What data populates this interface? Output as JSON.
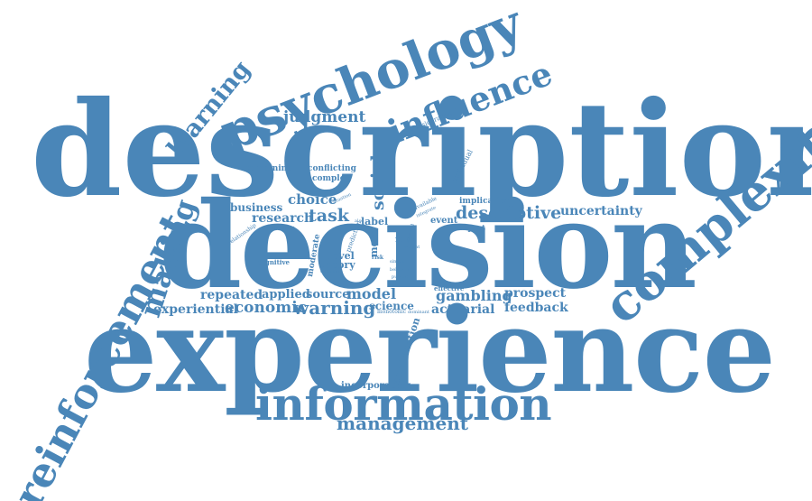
{
  "accent_color": "#4a86b8",
  "background_color": "#ffffff",
  "words": [
    {
      "id": "description",
      "text": "description"
    },
    {
      "id": "decision",
      "text": "decision"
    },
    {
      "id": "experience",
      "text": "experience"
    },
    {
      "id": "information",
      "text": "information"
    },
    {
      "id": "management",
      "text": "management"
    },
    {
      "id": "psychology",
      "text": "psychology"
    },
    {
      "id": "influence",
      "text": "influence"
    },
    {
      "id": "complexity",
      "text": "complexity"
    },
    {
      "id": "reinforcement",
      "text": "reinforcement"
    },
    {
      "id": "learning",
      "text": "learning"
    },
    {
      "id": "making",
      "text": "making"
    },
    {
      "id": "judgment",
      "text": "judgment"
    },
    {
      "id": "consideration",
      "text": "consideration"
    },
    {
      "id": "combining",
      "text": "combining"
    },
    {
      "id": "conflicting",
      "text": "conflicting"
    },
    {
      "id": "complex",
      "text": "complex"
    },
    {
      "id": "social",
      "text": "social"
    },
    {
      "id": "individual",
      "text": "individual"
    },
    {
      "id": "choice",
      "text": "choice"
    },
    {
      "id": "business",
      "text": "business"
    },
    {
      "id": "research",
      "text": "research"
    },
    {
      "id": "task",
      "text": "task"
    },
    {
      "id": "situation",
      "text": "situation"
    },
    {
      "id": "label",
      "text": "label"
    },
    {
      "id": "also",
      "text": "also"
    },
    {
      "id": "available",
      "text": "available"
    },
    {
      "id": "integrate",
      "text": "integrate"
    },
    {
      "id": "implication",
      "text": "implication"
    },
    {
      "id": "descriptive",
      "text": "descriptive"
    },
    {
      "id": "uncertainty",
      "text": "uncertainty"
    },
    {
      "id": "event",
      "text": "event"
    },
    {
      "id": "impact",
      "text": "impact"
    },
    {
      "id": "relationship",
      "text": "relationship"
    },
    {
      "id": "experiment",
      "text": "experiment"
    },
    {
      "id": "moderate",
      "text": "moderate"
    },
    {
      "id": "prediction",
      "text": "prediction"
    },
    {
      "id": "more",
      "text": "more"
    },
    {
      "id": "rare",
      "text": "rare"
    },
    {
      "id": "observed",
      "text": "observed"
    },
    {
      "id": "weight",
      "text": "weight"
    },
    {
      "id": "level",
      "text": "level"
    },
    {
      "id": "theory",
      "text": "theory"
    },
    {
      "id": "risk",
      "text": "risk"
    },
    {
      "id": "simple",
      "text": "simple"
    },
    {
      "id": "cognitive",
      "text": "cognitive"
    },
    {
      "id": "different",
      "text": "different"
    },
    {
      "id": "behavior",
      "text": "behavior"
    },
    {
      "id": "pursuit",
      "text": "pursuit"
    },
    {
      "id": "effective",
      "text": "effective"
    },
    {
      "id": "gambling",
      "text": "gambling"
    },
    {
      "id": "prospect",
      "text": "prospect"
    },
    {
      "id": "repeated",
      "text": "repeated"
    },
    {
      "id": "applied",
      "text": "applied"
    },
    {
      "id": "source",
      "text": "source"
    },
    {
      "id": "model",
      "text": "model"
    },
    {
      "id": "experiential",
      "text": "experiential"
    },
    {
      "id": "economic",
      "text": "economic"
    },
    {
      "id": "warning",
      "text": "warning"
    },
    {
      "id": "science",
      "text": "science"
    },
    {
      "id": "monotonic",
      "text": "monotonic"
    },
    {
      "id": "dominant",
      "text": "dominant"
    },
    {
      "id": "actuarial",
      "text": "actuarial"
    },
    {
      "id": "feedback",
      "text": "feedback"
    },
    {
      "id": "incorporating",
      "text": "incorporating"
    },
    {
      "id": "combination",
      "text": "combination"
    }
  ]
}
